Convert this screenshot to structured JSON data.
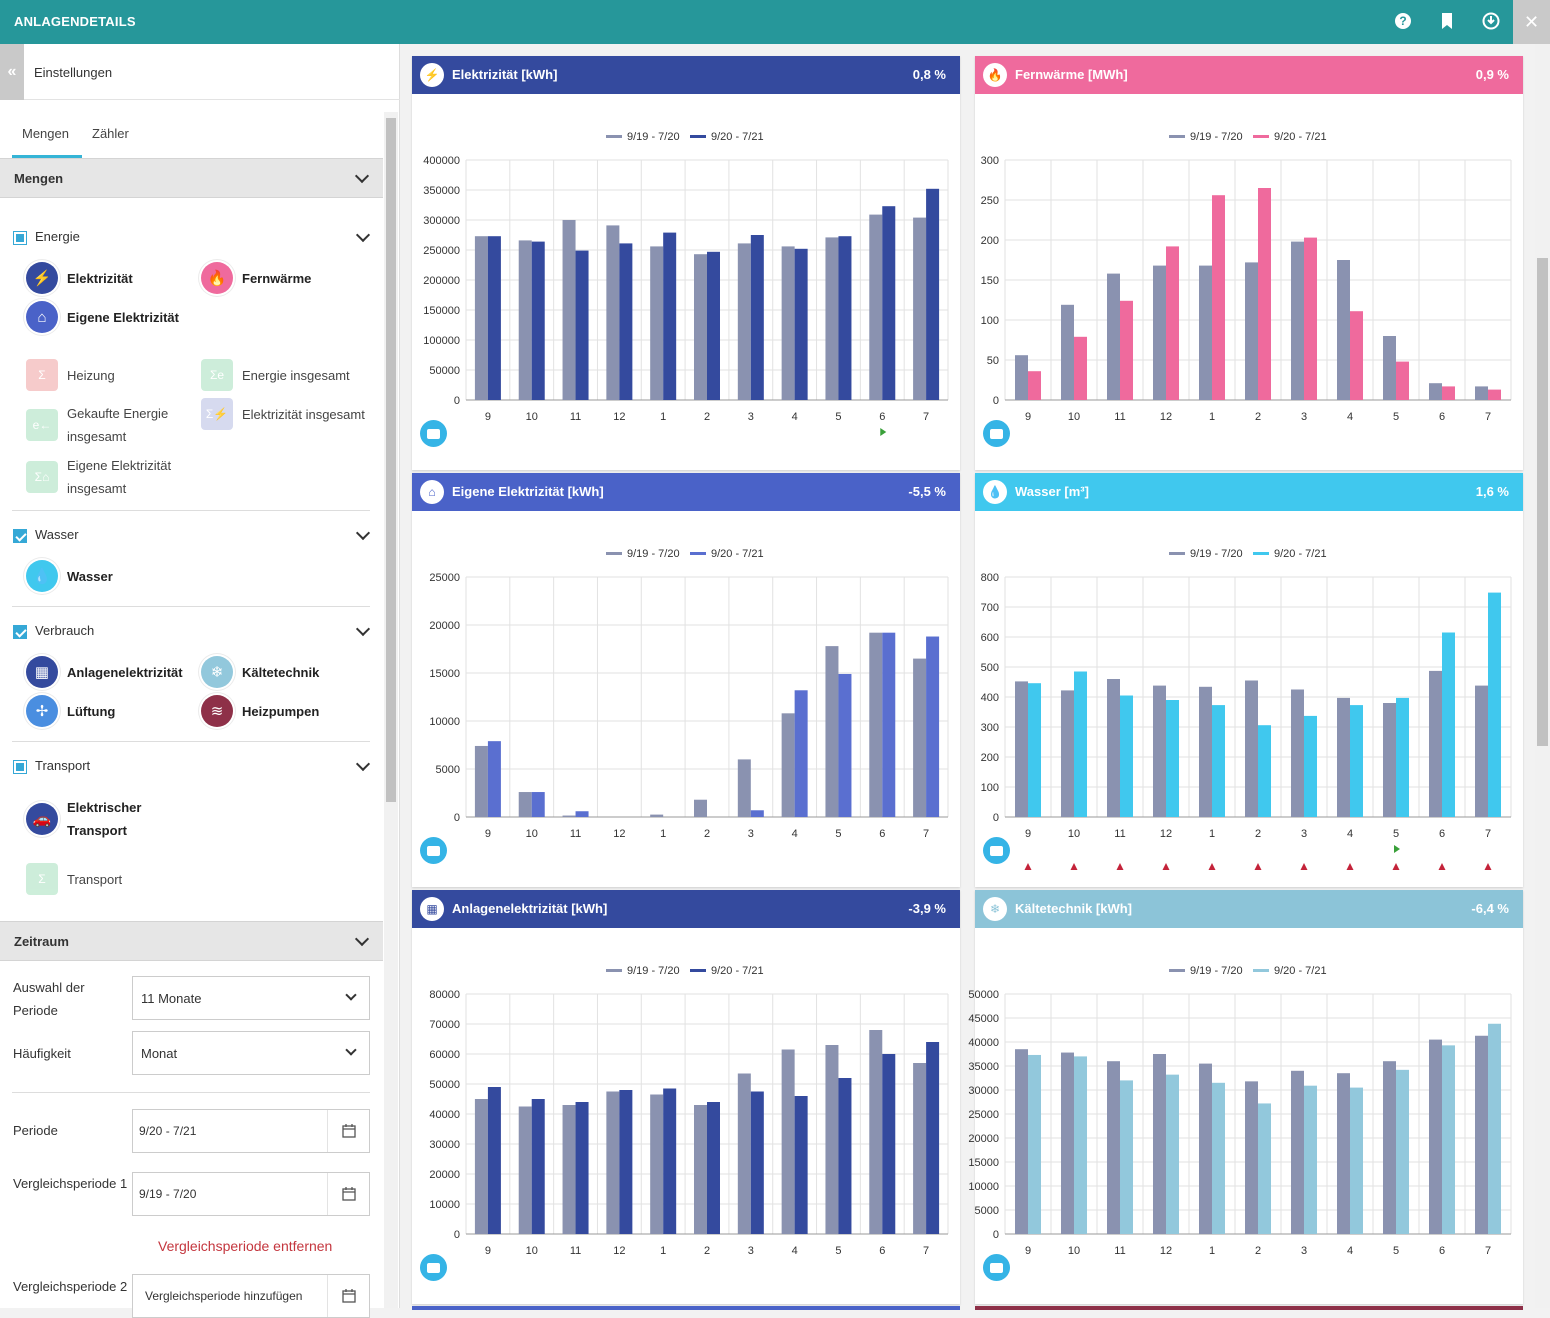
{
  "app": {
    "title": "ANLAGENDETAILS"
  },
  "topbar_icons": [
    "help-icon",
    "bookmark-icon",
    "download-icon",
    "close-icon"
  ],
  "sidebar": {
    "header": "Einstellungen",
    "tabs": [
      "Mengen",
      "Zähler"
    ],
    "mengen_section": "Mengen",
    "groups": {
      "energie": {
        "label": "Energie",
        "state": "partial",
        "selected": [
          "Elektrizität",
          "Fernwärme",
          "Eigene Elektrizität"
        ],
        "unselected": [
          "Heizung",
          "Energie insgesamt",
          "Gekaufte Energie insgesamt",
          "Elektrizität insgesamt",
          "Eigene Elektrizität insgesamt"
        ]
      },
      "wasser": {
        "label": "Wasser",
        "state": "checked",
        "selected": [
          "Wasser"
        ]
      },
      "verbrauch": {
        "label": "Verbrauch",
        "state": "checked",
        "selected": [
          "Anlagenelektrizität",
          "Kältetechnik",
          "Lüftung",
          "Heizpumpen"
        ]
      },
      "transport": {
        "label": "Transport",
        "state": "partial",
        "selected": [
          "Elektrischer Transport"
        ],
        "unselected": [
          "Transport"
        ]
      }
    },
    "zeitraum": {
      "title": "Zeitraum",
      "auswahl_label": "Auswahl der Periode",
      "auswahl_value": "11 Monate",
      "haeufigkeit_label": "Häufigkeit",
      "haeufigkeit_value": "Monat",
      "periode_label": "Periode",
      "periode_value": "9/20 - 7/21",
      "vergleich1_label": "Vergleichsperiode 1",
      "vergleich1_value": "9/19 - 7/20",
      "remove_link": "Vergleichsperiode entfernen",
      "vergleich2_label": "Vergleichsperiode 2",
      "vergleich2_placeholder": "Vergleichsperiode hinzufügen"
    }
  },
  "colors": {
    "teal": "#26979a",
    "compare": "#8a92b0",
    "elektrizitaet": "#344a9e",
    "fernwaerme": "#ef6a9d",
    "eigene": "#4a62c8",
    "wasser": "#40c8ee",
    "anlagen": "#344a9e",
    "kaelte": "#92c8dc"
  },
  "chart_data": [
    {
      "type": "bar",
      "title": "Elektrizität [kWh]",
      "percent": "0,8 %",
      "color": "#344a9e",
      "header_color": "#344a9e",
      "categories": [
        "9",
        "10",
        "11",
        "12",
        "1",
        "2",
        "3",
        "4",
        "5",
        "6",
        "7"
      ],
      "series": [
        {
          "name": "9/19 - 7/20",
          "values": [
            273000,
            266000,
            300000,
            291000,
            256000,
            243000,
            261000,
            256000,
            271000,
            309000,
            304000
          ]
        },
        {
          "name": "9/20 - 7/21",
          "values": [
            273000,
            264000,
            249000,
            261000,
            279000,
            247000,
            275000,
            252000,
            273000,
            323000,
            352000
          ]
        }
      ],
      "yticks": [
        "0",
        "50000",
        "100000",
        "150000",
        "200000",
        "250000",
        "300000",
        "350000",
        "400000"
      ],
      "ylim": [
        0,
        400000
      ],
      "markers": [
        {
          "type": "green",
          "index": 9
        }
      ]
    },
    {
      "type": "bar",
      "title": "Fernwärme [MWh]",
      "percent": "0,9 %",
      "color": "#ef6a9d",
      "header_color": "#ef6a9d",
      "categories": [
        "9",
        "10",
        "11",
        "12",
        "1",
        "2",
        "3",
        "4",
        "5",
        "6",
        "7"
      ],
      "series": [
        {
          "name": "9/19 - 7/20",
          "values": [
            56,
            119,
            158,
            168,
            168,
            172,
            198,
            175,
            80,
            21,
            17
          ]
        },
        {
          "name": "9/20 - 7/21",
          "values": [
            36,
            79,
            124,
            192,
            256,
            265,
            203,
            111,
            48,
            17,
            13
          ]
        }
      ],
      "yticks": [
        "0",
        "50",
        "100",
        "150",
        "200",
        "250",
        "300"
      ],
      "ylim": [
        0,
        300
      ],
      "markers": []
    },
    {
      "type": "bar",
      "title": "Eigene Elektrizität [kWh]",
      "percent": "-5,5 %",
      "color": "#5a6fd0",
      "header_color": "#4a62c8",
      "categories": [
        "9",
        "10",
        "11",
        "12",
        "1",
        "2",
        "3",
        "4",
        "5",
        "6",
        "7"
      ],
      "series": [
        {
          "name": "9/19 - 7/20",
          "values": [
            7400,
            2600,
            150,
            0,
            250,
            1800,
            6000,
            10800,
            17800,
            19200,
            16500
          ]
        },
        {
          "name": "9/20 - 7/21",
          "values": [
            7900,
            2600,
            600,
            0,
            0,
            0,
            700,
            13200,
            14900,
            19200,
            18800
          ]
        }
      ],
      "yticks": [
        "0",
        "5000",
        "10000",
        "15000",
        "20000",
        "25000"
      ],
      "ylim": [
        0,
        25000
      ],
      "markers": []
    },
    {
      "type": "bar",
      "title": "Wasser [m³]",
      "percent": "1,6 %",
      "color": "#40c8ee",
      "header_color": "#40c8ee",
      "categories": [
        "9",
        "10",
        "11",
        "12",
        "1",
        "2",
        "3",
        "4",
        "5",
        "6",
        "7"
      ],
      "series": [
        {
          "name": "9/19 - 7/20",
          "values": [
            452,
            422,
            460,
            438,
            434,
            455,
            425,
            397,
            380,
            487,
            438
          ]
        },
        {
          "name": "9/20 - 7/21",
          "values": [
            446,
            485,
            405,
            390,
            373,
            306,
            337,
            373,
            397,
            615,
            748
          ]
        }
      ],
      "yticks": [
        "0",
        "100",
        "200",
        "300",
        "400",
        "500",
        "600",
        "700",
        "800"
      ],
      "ylim": [
        0,
        800
      ],
      "markers": [
        {
          "type": "red",
          "index": 0
        },
        {
          "type": "red",
          "index": 1
        },
        {
          "type": "red",
          "index": 2
        },
        {
          "type": "red",
          "index": 3
        },
        {
          "type": "red",
          "index": 4
        },
        {
          "type": "red",
          "index": 5
        },
        {
          "type": "red",
          "index": 6
        },
        {
          "type": "red",
          "index": 7
        },
        {
          "type": "red",
          "index": 8
        },
        {
          "type": "red",
          "index": 9
        },
        {
          "type": "red",
          "index": 10
        },
        {
          "type": "green",
          "index": 8
        }
      ]
    },
    {
      "type": "bar",
      "title": "Anlagenelektrizität [kWh]",
      "percent": "-3,9 %",
      "color": "#344a9e",
      "header_color": "#344a9e",
      "categories": [
        "9",
        "10",
        "11",
        "12",
        "1",
        "2",
        "3",
        "4",
        "5",
        "6",
        "7"
      ],
      "series": [
        {
          "name": "9/19 - 7/20",
          "values": [
            45000,
            42500,
            43000,
            47500,
            46500,
            43000,
            53500,
            61500,
            63000,
            68000,
            57000
          ]
        },
        {
          "name": "9/20 - 7/21",
          "values": [
            49000,
            45000,
            44000,
            48000,
            48500,
            44000,
            47500,
            46000,
            52000,
            60000,
            64000
          ]
        }
      ],
      "yticks": [
        "0",
        "10000",
        "20000",
        "30000",
        "40000",
        "50000",
        "60000",
        "70000",
        "80000"
      ],
      "ylim": [
        0,
        80000
      ],
      "markers": []
    },
    {
      "type": "bar",
      "title": "Kältetechnik [kWh]",
      "percent": "-6,4 %",
      "color": "#92c8dc",
      "header_color": "#8cc4d8",
      "categories": [
        "9",
        "10",
        "11",
        "12",
        "1",
        "2",
        "3",
        "4",
        "5",
        "6",
        "7"
      ],
      "series": [
        {
          "name": "9/19 - 7/20",
          "values": [
            38500,
            37800,
            36000,
            37500,
            35500,
            31800,
            34000,
            33500,
            36000,
            40500,
            41300
          ]
        },
        {
          "name": "9/20 - 7/21",
          "values": [
            37300,
            37000,
            32000,
            33200,
            31500,
            27200,
            30900,
            30500,
            34200,
            39300,
            43800
          ]
        }
      ],
      "yticks": [
        "0",
        "5000",
        "10000",
        "15000",
        "20000",
        "25000",
        "30000",
        "35000",
        "40000",
        "45000",
        "50000"
      ],
      "ylim": [
        0,
        50000
      ],
      "markers": []
    }
  ]
}
